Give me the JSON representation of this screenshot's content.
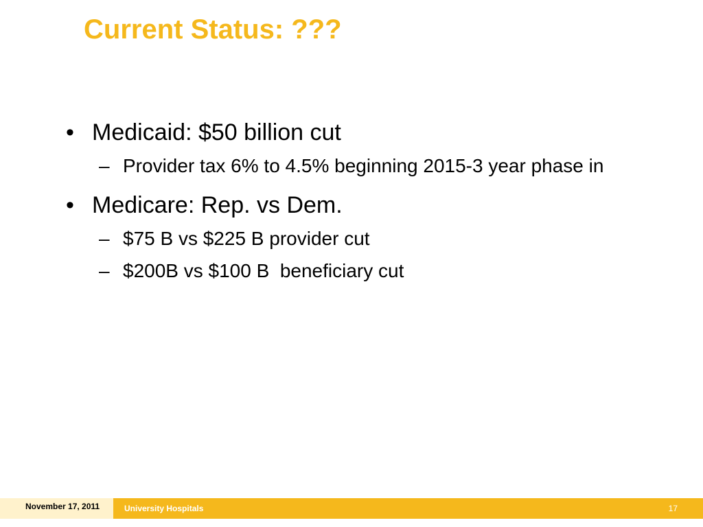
{
  "slide": {
    "title": "Current Status: ???",
    "title_color": "#F5B81C",
    "items": [
      {
        "text": "Medicaid: $50 billion cut",
        "subitems": [
          "Provider tax 6% to 4.5% beginning 2015-3 year phase in"
        ]
      },
      {
        "text": "Medicare: Rep. vs Dem.",
        "subitems": [
          "$75 B vs $225 B provider cut",
          "$200B vs $100 B  beneficiary cut"
        ]
      }
    ],
    "bullet_glyph": "•",
    "dash_glyph": "–"
  },
  "footer": {
    "date": "November 17, 2011",
    "organization": "University Hospitals",
    "page_number": "17",
    "bar_color": "#F5B81C",
    "date_bg_color": "#FFF2CC"
  }
}
